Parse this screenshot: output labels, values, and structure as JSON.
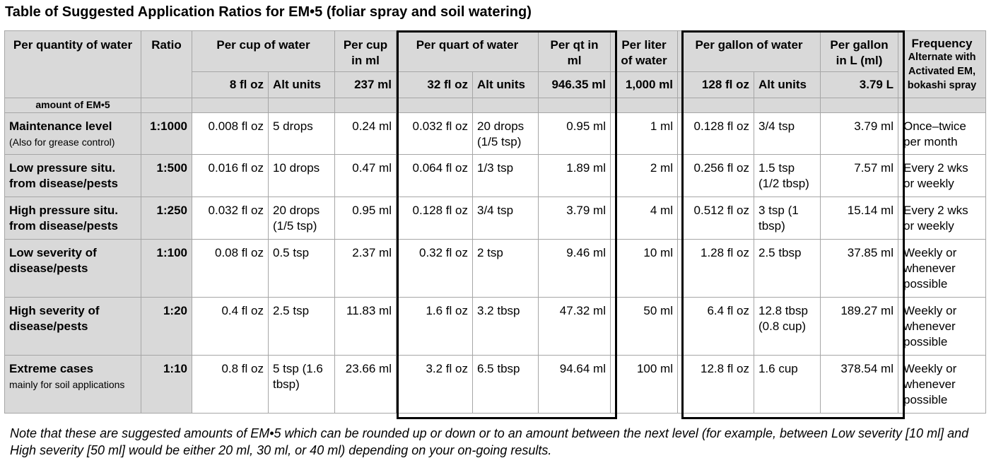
{
  "title": "Table of Suggested Application Ratios for EM•5 (foliar spray and soil watering)",
  "headers": {
    "per_quantity": "Per quantity of water",
    "ratio": "Ratio",
    "per_cup": "Per cup of water",
    "per_cup_ml": "Per cup in ml",
    "per_quart": "Per quart of water",
    "per_qt_ml": "Per qt in ml",
    "per_liter": "Per liter of water",
    "per_gallon": "Per gallon of water",
    "per_gallon_l": "Per gallon in L (ml)",
    "frequency": "Frequency",
    "frequency_sub": "Alternate with Activated EM, bokashi spray"
  },
  "subheaders": {
    "cup_floz": "8 fl oz",
    "cup_alt": "Alt units",
    "cup_ml": "237 ml",
    "quart_floz": "32 fl oz",
    "quart_alt": "Alt units",
    "quart_ml": "946.35 ml",
    "liter_ml": "1,000 ml",
    "gallon_floz": "128 fl oz",
    "gallon_alt": "Alt units",
    "gallon_l": "3.79 L"
  },
  "amount_label": "amount of EM•5",
  "rows": [
    {
      "label": "Maintenance level",
      "sub": "(Also for grease control)",
      "ratio": "1:1000",
      "cup_floz": "0.008 fl oz",
      "cup_alt": "5 drops",
      "cup_ml": "0.24 ml",
      "quart_floz": "0.032 fl oz",
      "quart_alt": "20 drops (1/5 tsp)",
      "qt_ml": "0.95 ml",
      "liter": "1 ml",
      "gal_floz": "0.128 fl oz",
      "gal_alt": "3/4 tsp",
      "gal_l": "3.79 ml",
      "freq": "Once–twice per month"
    },
    {
      "label": "Low pressure situ. from disease/pests",
      "sub": "",
      "ratio": "1:500",
      "cup_floz": "0.016 fl oz",
      "cup_alt": "10 drops",
      "cup_ml": "0.47 ml",
      "quart_floz": "0.064 fl oz",
      "quart_alt": "1/3 tsp",
      "qt_ml": "1.89 ml",
      "liter": "2 ml",
      "gal_floz": "0.256 fl oz",
      "gal_alt": "1.5 tsp (1/2 tbsp)",
      "gal_l": "7.57 ml",
      "freq": "Every 2 wks or weekly"
    },
    {
      "label": "High pressure situ. from disease/pests",
      "sub": "",
      "ratio": "1:250",
      "cup_floz": "0.032 fl oz",
      "cup_alt": "20 drops (1/5 tsp)",
      "cup_ml": "0.95 ml",
      "quart_floz": "0.128 fl oz",
      "quart_alt": "3/4 tsp",
      "qt_ml": "3.79 ml",
      "liter": "4 ml",
      "gal_floz": "0.512 fl oz",
      "gal_alt": "3 tsp (1 tbsp)",
      "gal_l": "15.14 ml",
      "freq": "Every 2 wks or weekly"
    },
    {
      "label": "Low severity of disease/pests",
      "sub": "",
      "ratio": "1:100",
      "cup_floz": "0.08 fl oz",
      "cup_alt": "0.5 tsp",
      "cup_ml": "2.37 ml",
      "quart_floz": "0.32 fl oz",
      "quart_alt": "2 tsp",
      "qt_ml": "9.46 ml",
      "liter": "10 ml",
      "gal_floz": "1.28 fl oz",
      "gal_alt": "2.5 tbsp",
      "gal_l": "37.85 ml",
      "freq": "Weekly or whenever possible"
    },
    {
      "label": "High severity of disease/pests",
      "sub": "",
      "ratio": "1:20",
      "cup_floz": "0.4 fl oz",
      "cup_alt": "2.5 tsp",
      "cup_ml": "11.83 ml",
      "quart_floz": "1.6 fl oz",
      "quart_alt": "3.2 tbsp",
      "qt_ml": "47.32 ml",
      "liter": "50 ml",
      "gal_floz": "6.4 fl oz",
      "gal_alt": "12.8 tbsp (0.8 cup)",
      "gal_l": "189.27 ml",
      "freq": "Weekly or whenever possible"
    },
    {
      "label": "Extreme cases",
      "sub": "mainly for soil applications",
      "ratio": "1:10",
      "cup_floz": "0.8 fl oz",
      "cup_alt": "5 tsp (1.6 tbsp)",
      "cup_ml": "23.66 ml",
      "quart_floz": "3.2 fl oz",
      "quart_alt": "6.5 tbsp",
      "qt_ml": "94.64 ml",
      "liter": "100 ml",
      "gal_floz": "12.8 fl oz",
      "gal_alt": "1.6 cup",
      "gal_l": "378.54 ml",
      "freq": "Weekly or whenever possible"
    }
  ],
  "note": "Note that these are suggested amounts of EM•5 which can be rounded up or down or to an amount between the next level (for example, between Low severity [10 ml] and High severity [50 ml] would be either 20 ml, 30 ml, or 40 ml) depending on your on-going results."
}
